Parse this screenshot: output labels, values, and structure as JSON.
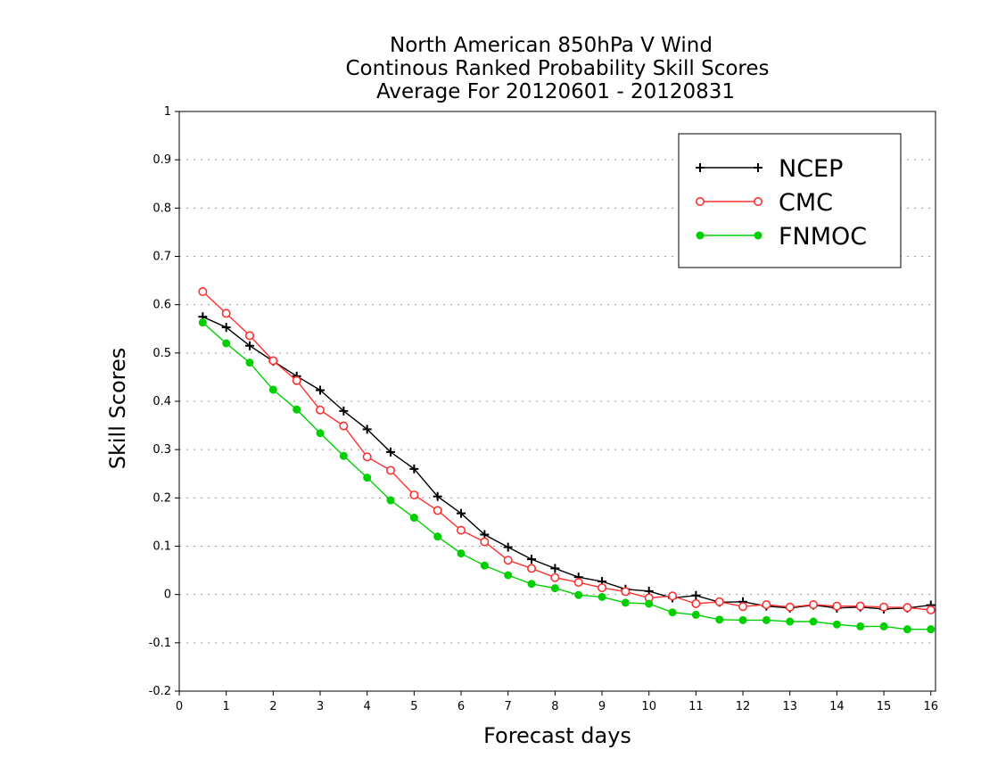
{
  "chart_data": {
    "type": "line",
    "title_lines": [
      "North American 850hPa V Wind",
      "Continous Ranked Probability Skill Scores",
      "Average For 20120601 - 20120831"
    ],
    "xlabel": "Forecast days",
    "ylabel": "Skill Scores",
    "xlim": [
      0,
      16.1
    ],
    "ylim": [
      -0.2,
      1
    ],
    "x_ticks": [
      0,
      1,
      2,
      3,
      4,
      5,
      6,
      7,
      8,
      9,
      10,
      11,
      12,
      13,
      14,
      15,
      16
    ],
    "y_ticks": [
      -0.2,
      -0.1,
      0,
      0.1,
      0.2,
      0.3,
      0.4,
      0.5,
      0.6,
      0.7,
      0.8,
      0.9,
      1
    ],
    "y_tick_labels": [
      "-0.2",
      "-0.1",
      "0",
      "0.1",
      "0.2",
      "0.3",
      "0.4",
      "0.5",
      "0.6",
      "0.7",
      "0.8",
      "0.9",
      "1"
    ],
    "grid": "horizontal dotted",
    "legend_position": "top-right",
    "x": [
      0.5,
      1,
      1.5,
      2,
      2.5,
      3,
      3.5,
      4,
      4.5,
      5,
      5.5,
      6,
      6.5,
      7,
      7.5,
      8,
      8.5,
      9,
      9.5,
      10,
      10.5,
      11,
      11.5,
      12,
      12.5,
      13,
      13.5,
      14,
      14.5,
      15,
      15.5,
      16
    ],
    "series": [
      {
        "name": "NCEP",
        "color": "#000000",
        "marker": "plus",
        "values": [
          0.575,
          0.553,
          0.515,
          0.483,
          0.452,
          0.423,
          0.38,
          0.342,
          0.295,
          0.26,
          0.203,
          0.168,
          0.124,
          0.098,
          0.073,
          0.054,
          0.036,
          0.027,
          0.011,
          0.007,
          -0.007,
          -0.002,
          -0.016,
          -0.015,
          -0.024,
          -0.028,
          -0.022,
          -0.028,
          -0.026,
          -0.03,
          -0.028,
          -0.022
        ]
      },
      {
        "name": "CMC",
        "color": "#ff3030",
        "marker": "open-circle",
        "values": [
          0.627,
          0.582,
          0.536,
          0.484,
          0.443,
          0.382,
          0.349,
          0.285,
          0.257,
          0.206,
          0.174,
          0.133,
          0.109,
          0.071,
          0.054,
          0.035,
          0.025,
          0.014,
          0.006,
          -0.007,
          -0.003,
          -0.019,
          -0.015,
          -0.025,
          -0.021,
          -0.026,
          -0.021,
          -0.024,
          -0.024,
          -0.026,
          -0.027,
          -0.032
        ]
      },
      {
        "name": "FNMOC",
        "color": "#00d000",
        "marker": "filled-circle",
        "values": [
          0.563,
          0.52,
          0.48,
          0.424,
          0.383,
          0.334,
          0.287,
          0.242,
          0.195,
          0.159,
          0.12,
          0.085,
          0.06,
          0.04,
          0.022,
          0.013,
          -0.001,
          -0.005,
          -0.017,
          -0.019,
          -0.037,
          -0.042,
          -0.052,
          -0.053,
          -0.053,
          -0.056,
          -0.056,
          -0.062,
          -0.066,
          -0.066,
          -0.072,
          -0.072
        ]
      }
    ]
  }
}
